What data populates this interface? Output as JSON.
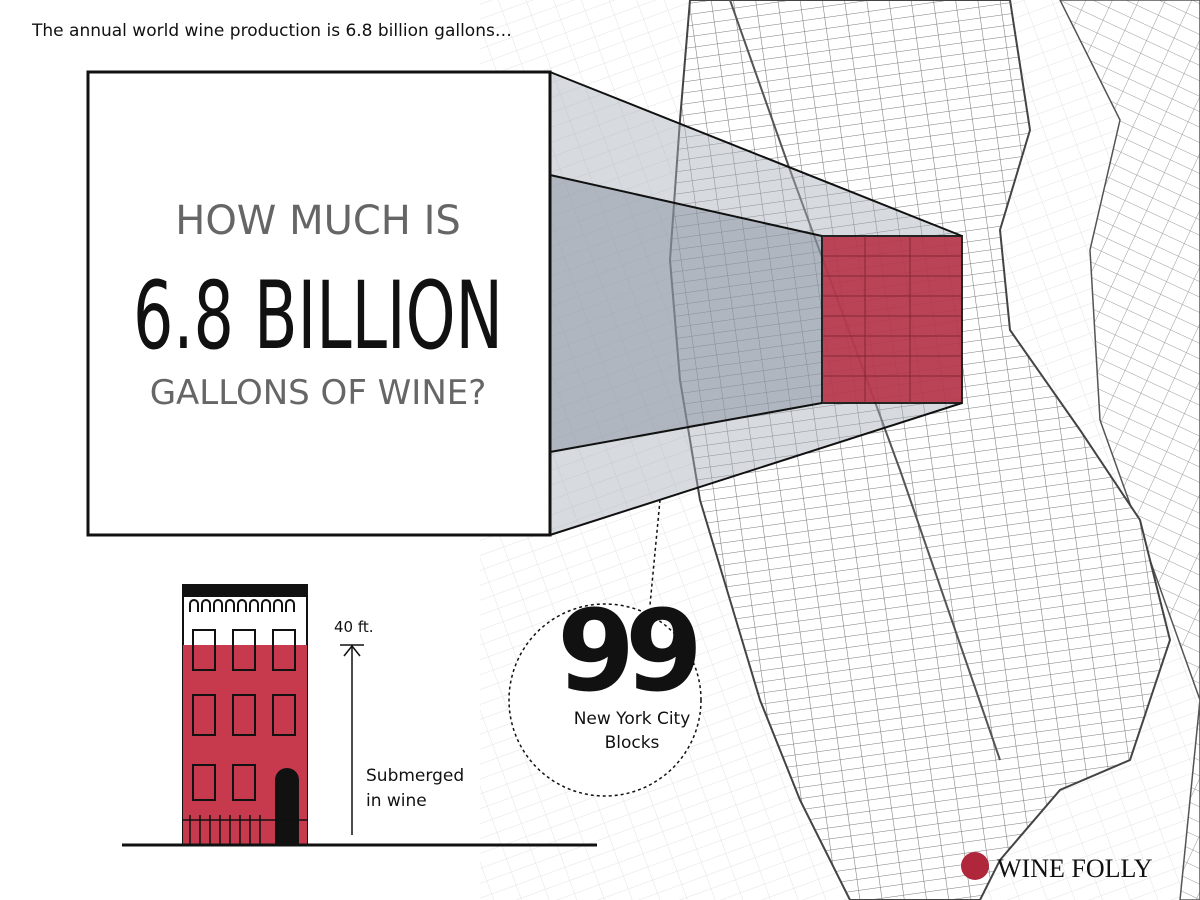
{
  "header": {
    "intro": "The annual world wine production is 6.8 billion gallons…"
  },
  "headline": {
    "line1": "HOW MUCH IS",
    "line2": "6.8 BILLION",
    "line3": "GALLONS OF WINE?"
  },
  "building": {
    "height_label": "40 ft.",
    "caption_line1": "Submerged",
    "caption_line2": "in wine"
  },
  "badge": {
    "number": "99",
    "label_line1": "New York City",
    "label_line2": "Blocks"
  },
  "brand": {
    "name": "WINE FOLLY"
  }
}
